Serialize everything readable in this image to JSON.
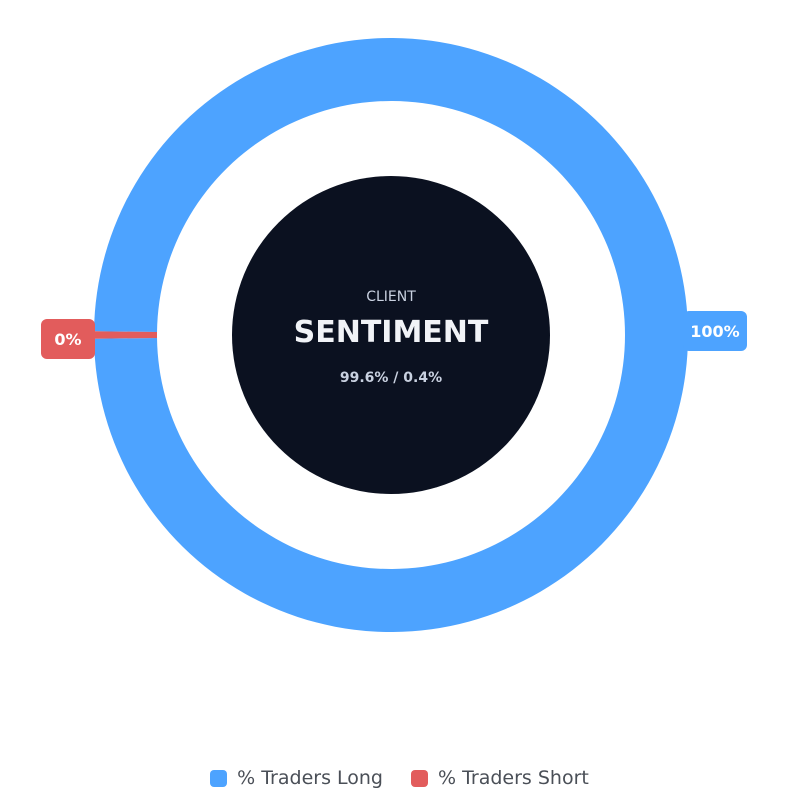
{
  "chart_data": {
    "type": "pie",
    "variant": "doughnut",
    "center": {
      "overline": "CLIENT",
      "title": "SENTIMENT",
      "subtitle": "99.6% / 0.4%"
    },
    "series": [
      {
        "name": "% Traders Long",
        "value": 99.6,
        "label": "100%",
        "color": "#4da3ff"
      },
      {
        "name": "% Traders Short",
        "value": 0.4,
        "label": "0%",
        "color": "#e25c5c"
      }
    ],
    "legend_position": "bottom",
    "center_fill": "#0b1120"
  }
}
